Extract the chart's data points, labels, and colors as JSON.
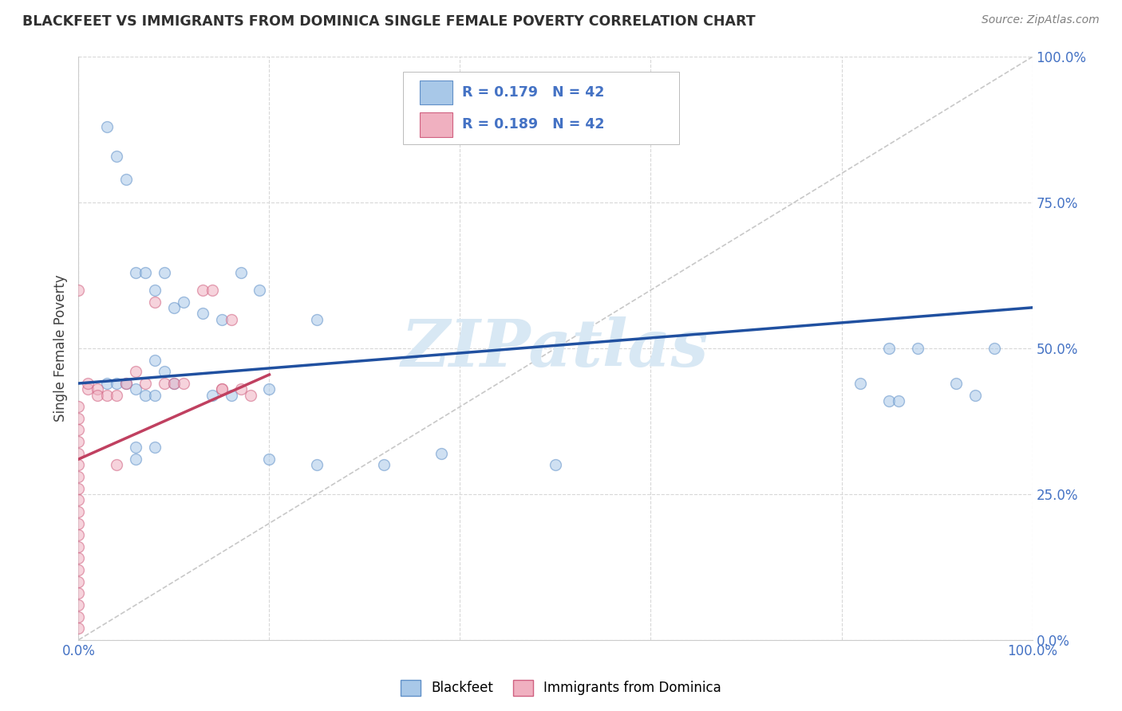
{
  "title": "BLACKFEET VS IMMIGRANTS FROM DOMINICA SINGLE FEMALE POVERTY CORRELATION CHART",
  "source": "Source: ZipAtlas.com",
  "ylabel": "Single Female Poverty",
  "ytick_labels": [
    "0.0%",
    "25.0%",
    "50.0%",
    "75.0%",
    "100.0%"
  ],
  "ytick_values": [
    0.0,
    0.25,
    0.5,
    0.75,
    1.0
  ],
  "xtick_values": [
    0.0,
    0.2,
    0.4,
    0.6,
    0.8,
    1.0
  ],
  "blue_R": 0.179,
  "blue_N": 42,
  "pink_R": 0.189,
  "pink_N": 42,
  "blue_color": "#A8C8E8",
  "pink_color": "#F0B0C0",
  "blue_edge_color": "#6090C8",
  "pink_edge_color": "#D06080",
  "blue_line_color": "#2050A0",
  "pink_line_color": "#C04060",
  "diagonal_color": "#C8C8C8",
  "background_color": "#FFFFFF",
  "grid_color": "#D8D8D8",
  "title_color": "#303030",
  "source_color": "#808080",
  "tick_label_color": "#4472C4",
  "ylabel_color": "#404040",
  "watermark": "ZIPatlas",
  "watermark_color": "#D8E8F4",
  "legend_blue_label": "Blackfeet",
  "legend_pink_label": "Immigrants from Dominica",
  "annotation_color": "#4472C4",
  "blue_line_x0": 0.0,
  "blue_line_y0": 0.44,
  "blue_line_x1": 1.0,
  "blue_line_y1": 0.57,
  "pink_line_x0": 0.0,
  "pink_line_y0": 0.31,
  "pink_line_x1": 0.2,
  "pink_line_y1": 0.455,
  "blue_points_x": [
    0.03,
    0.04,
    0.05,
    0.06,
    0.07,
    0.08,
    0.09,
    0.1,
    0.11,
    0.13,
    0.15,
    0.17,
    0.19,
    0.08,
    0.09,
    0.1,
    0.03,
    0.04,
    0.05,
    0.06,
    0.07,
    0.08,
    0.14,
    0.16,
    0.2,
    0.25,
    0.32,
    0.38,
    0.5,
    0.82,
    0.85,
    0.88,
    0.92,
    0.94,
    0.96,
    0.06,
    0.06,
    0.08,
    0.2,
    0.25,
    0.85,
    0.86
  ],
  "blue_points_y": [
    0.88,
    0.83,
    0.79,
    0.63,
    0.63,
    0.6,
    0.63,
    0.57,
    0.58,
    0.56,
    0.55,
    0.63,
    0.6,
    0.48,
    0.46,
    0.44,
    0.44,
    0.44,
    0.44,
    0.43,
    0.42,
    0.42,
    0.42,
    0.42,
    0.43,
    0.55,
    0.3,
    0.32,
    0.3,
    0.44,
    0.5,
    0.5,
    0.44,
    0.42,
    0.5,
    0.33,
    0.31,
    0.33,
    0.31,
    0.3,
    0.41,
    0.41
  ],
  "pink_points_x": [
    0.0,
    0.0,
    0.0,
    0.0,
    0.0,
    0.0,
    0.0,
    0.0,
    0.0,
    0.0,
    0.0,
    0.0,
    0.0,
    0.0,
    0.0,
    0.0,
    0.0,
    0.0,
    0.0,
    0.0,
    0.0,
    0.01,
    0.01,
    0.02,
    0.02,
    0.03,
    0.04,
    0.04,
    0.05,
    0.06,
    0.07,
    0.08,
    0.09,
    0.1,
    0.11,
    0.13,
    0.14,
    0.15,
    0.15,
    0.16,
    0.17,
    0.18
  ],
  "pink_points_y": [
    0.02,
    0.04,
    0.06,
    0.08,
    0.1,
    0.12,
    0.14,
    0.16,
    0.18,
    0.2,
    0.22,
    0.24,
    0.26,
    0.28,
    0.3,
    0.32,
    0.34,
    0.36,
    0.38,
    0.4,
    0.6,
    0.43,
    0.44,
    0.43,
    0.42,
    0.42,
    0.42,
    0.3,
    0.44,
    0.46,
    0.44,
    0.58,
    0.44,
    0.44,
    0.44,
    0.6,
    0.6,
    0.43,
    0.43,
    0.55,
    0.43,
    0.42
  ],
  "marker_size": 100,
  "marker_alpha": 0.55,
  "marker_linewidth": 1.0
}
